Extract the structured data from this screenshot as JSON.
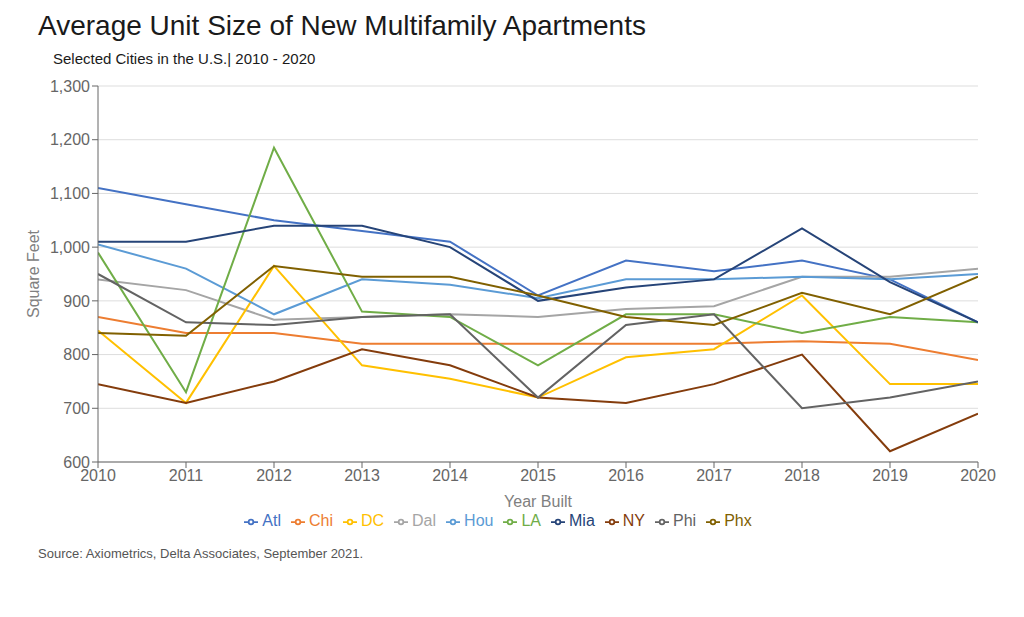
{
  "chart_data": {
    "type": "line",
    "title": "Average Unit Size of New Multifamily Apartments",
    "subtitle": "Selected Cities in the U.S.| 2010 - 2020",
    "annotations": [
      "Source: Axiometrics, Delta Associates, September 2021."
    ],
    "xlabel": "Year Built",
    "ylabel": "Square Feet",
    "x": [
      2010,
      2011,
      2012,
      2013,
      2014,
      2015,
      2016,
      2017,
      2018,
      2019,
      2020
    ],
    "xlim": [
      2010,
      2020
    ],
    "xticks": [
      2010,
      2011,
      2012,
      2013,
      2014,
      2015,
      2016,
      2017,
      2018,
      2019,
      2020
    ],
    "ylim": [
      600,
      1300
    ],
    "yticks": [
      600,
      700,
      800,
      900,
      {
        "value": 1000,
        "label": "1,000"
      },
      {
        "value": 1100,
        "label": "1,100"
      },
      {
        "value": 1200,
        "label": "1,200"
      },
      {
        "value": 1300,
        "label": "1,300"
      }
    ],
    "grid": "y",
    "legend": "bottom",
    "series": [
      {
        "name": "Atl",
        "color": "#4472C4",
        "values": [
          1110,
          1080,
          1050,
          1030,
          1010,
          910,
          975,
          955,
          975,
          940,
          860
        ]
      },
      {
        "name": "Chi",
        "color": "#ED7D31",
        "values": [
          870,
          840,
          840,
          820,
          820,
          820,
          820,
          820,
          825,
          820,
          790
        ]
      },
      {
        "name": "Dal",
        "color": "#A5A5A5",
        "values": [
          940,
          920,
          865,
          870,
          875,
          870,
          885,
          890,
          945,
          945,
          960
        ]
      },
      {
        "name": "DC",
        "color": "#FFC000",
        "values": [
          845,
          710,
          965,
          780,
          755,
          720,
          795,
          810,
          910,
          745,
          745
        ]
      },
      {
        "name": "Hou",
        "color": "#5B9BD5",
        "values": [
          1005,
          960,
          875,
          940,
          930,
          905,
          940,
          940,
          945,
          940,
          950
        ]
      },
      {
        "name": "LA",
        "color": "#70AD47",
        "values": [
          990,
          730,
          1185,
          880,
          870,
          780,
          875,
          875,
          840,
          870,
          860
        ]
      },
      {
        "name": "Mia",
        "color": "#264478",
        "values": [
          1010,
          1010,
          1040,
          1040,
          1000,
          900,
          925,
          940,
          1035,
          935,
          860
        ]
      },
      {
        "name": "NY",
        "color": "#843C0C",
        "values": [
          745,
          710,
          750,
          810,
          780,
          720,
          710,
          745,
          800,
          620,
          690
        ]
      },
      {
        "name": "Phi",
        "color": "#636363",
        "values": [
          950,
          860,
          855,
          870,
          875,
          720,
          855,
          875,
          700,
          720,
          750
        ]
      },
      {
        "name": "Phx",
        "color": "#806000",
        "values": [
          840,
          835,
          965,
          945,
          945,
          910,
          870,
          855,
          915,
          875,
          945
        ]
      }
    ]
  }
}
